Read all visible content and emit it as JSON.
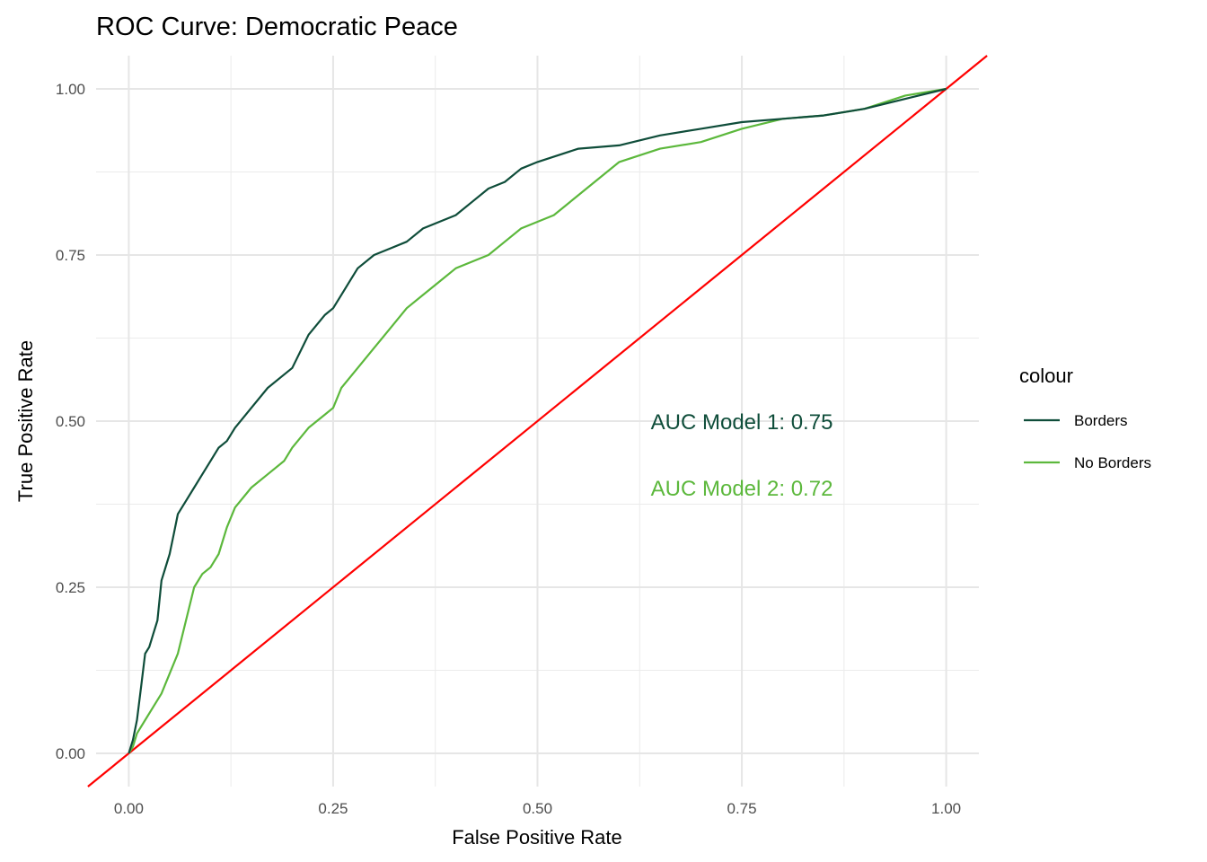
{
  "chart_data": {
    "type": "line",
    "title": "ROC Curve: Democratic Peace",
    "xlabel": "False Positive Rate",
    "ylabel": "True Positive Rate",
    "xlim": [
      -0.04,
      1.04
    ],
    "ylim": [
      -0.05,
      1.05
    ],
    "xticks": [
      0.0,
      0.25,
      0.5,
      0.75,
      1.0
    ],
    "xtick_labels": [
      "0.00",
      "0.25",
      "0.50",
      "0.75",
      "1.00"
    ],
    "yticks": [
      0.0,
      0.25,
      0.5,
      0.75,
      1.0
    ],
    "ytick_labels": [
      "0.00",
      "0.25",
      "0.50",
      "0.75",
      "1.00"
    ],
    "grid": true,
    "legend": {
      "title": "colour",
      "position": "right"
    },
    "series": [
      {
        "name": "Borders",
        "color": "#0f4d3a",
        "x": [
          0.0,
          0.005,
          0.01,
          0.015,
          0.02,
          0.025,
          0.03,
          0.035,
          0.04,
          0.05,
          0.055,
          0.06,
          0.07,
          0.08,
          0.09,
          0.1,
          0.11,
          0.12,
          0.13,
          0.15,
          0.17,
          0.19,
          0.2,
          0.22,
          0.24,
          0.25,
          0.26,
          0.27,
          0.28,
          0.3,
          0.32,
          0.34,
          0.36,
          0.38,
          0.4,
          0.42,
          0.44,
          0.46,
          0.48,
          0.5,
          0.55,
          0.6,
          0.65,
          0.7,
          0.75,
          0.8,
          0.85,
          0.9,
          0.95,
          1.0
        ],
        "y": [
          0.0,
          0.02,
          0.05,
          0.1,
          0.15,
          0.16,
          0.18,
          0.2,
          0.26,
          0.3,
          0.33,
          0.36,
          0.38,
          0.4,
          0.42,
          0.44,
          0.46,
          0.47,
          0.49,
          0.52,
          0.55,
          0.57,
          0.58,
          0.63,
          0.66,
          0.67,
          0.69,
          0.71,
          0.73,
          0.75,
          0.76,
          0.77,
          0.79,
          0.8,
          0.81,
          0.83,
          0.85,
          0.86,
          0.88,
          0.89,
          0.91,
          0.915,
          0.93,
          0.94,
          0.95,
          0.955,
          0.96,
          0.97,
          0.985,
          1.0
        ]
      },
      {
        "name": "No Borders",
        "color": "#5cb83c",
        "x": [
          0.0,
          0.005,
          0.01,
          0.02,
          0.03,
          0.04,
          0.05,
          0.06,
          0.07,
          0.08,
          0.09,
          0.1,
          0.11,
          0.12,
          0.13,
          0.15,
          0.17,
          0.19,
          0.2,
          0.22,
          0.24,
          0.25,
          0.26,
          0.28,
          0.3,
          0.32,
          0.34,
          0.36,
          0.38,
          0.4,
          0.42,
          0.44,
          0.46,
          0.48,
          0.5,
          0.52,
          0.55,
          0.6,
          0.65,
          0.7,
          0.75,
          0.8,
          0.85,
          0.9,
          0.95,
          1.0
        ],
        "y": [
          0.0,
          0.01,
          0.03,
          0.05,
          0.07,
          0.09,
          0.12,
          0.15,
          0.2,
          0.25,
          0.27,
          0.28,
          0.3,
          0.34,
          0.37,
          0.4,
          0.42,
          0.44,
          0.46,
          0.49,
          0.51,
          0.52,
          0.55,
          0.58,
          0.61,
          0.64,
          0.67,
          0.69,
          0.71,
          0.73,
          0.74,
          0.75,
          0.77,
          0.79,
          0.8,
          0.81,
          0.84,
          0.89,
          0.91,
          0.92,
          0.94,
          0.955,
          0.96,
          0.97,
          0.99,
          1.0
        ]
      }
    ],
    "reference_line": {
      "color": "#ff0000",
      "x": [
        -0.05,
        1.05
      ],
      "y": [
        -0.05,
        1.05
      ]
    },
    "annotations": [
      {
        "text": "AUC Model 1:  0.75",
        "x": 0.75,
        "y": 0.5,
        "color": "#0f4d3a"
      },
      {
        "text": "AUC Model 2:  0.72",
        "x": 0.75,
        "y": 0.4,
        "color": "#5cb83c"
      }
    ]
  }
}
